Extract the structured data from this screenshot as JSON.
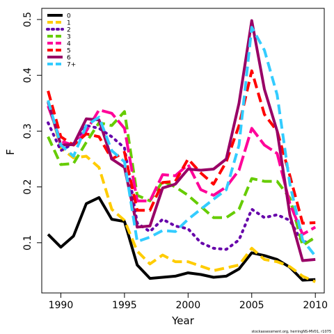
{
  "chart_data": {
    "type": "line",
    "xlabel": "Year",
    "ylabel": "F",
    "xlim": [
      1988.5,
      2010.7
    ],
    "ylim": [
      0.01,
      0.52
    ],
    "xticks": [
      1990,
      1995,
      2000,
      2005,
      2010
    ],
    "yticks": [
      0.1,
      0.2,
      0.3,
      0.4,
      0.5
    ],
    "legend_position": "top-left",
    "footnote": "stockassessment.org, herringNS-MV01, r1075",
    "series": [
      {
        "name": "0",
        "color": "#000000",
        "dash": "solid",
        "x": [
          1989,
          1990,
          1991,
          1992,
          1993,
          1994,
          1995,
          1996,
          1997,
          1998,
          1999,
          2000,
          2001,
          2002,
          2003,
          2004,
          2005,
          2006,
          2007,
          2008,
          2009,
          2010
        ],
        "y": [
          0.115,
          0.092,
          0.112,
          0.17,
          0.181,
          0.142,
          0.138,
          0.06,
          0.036,
          0.038,
          0.04,
          0.046,
          0.043,
          0.038,
          0.04,
          0.053,
          0.082,
          0.077,
          0.07,
          0.056,
          0.033,
          0.034
        ]
      },
      {
        "name": "1",
        "color": "#ffcc00",
        "dash": "dashed",
        "x": [
          1989,
          1990,
          1991,
          1992,
          1993,
          1994,
          1995,
          1996,
          1997,
          1998,
          1999,
          2000,
          2001,
          2002,
          2003,
          2004,
          2005,
          2006,
          2007,
          2008,
          2009,
          2010
        ],
        "y": [
          0.355,
          0.27,
          0.252,
          0.255,
          0.235,
          0.16,
          0.14,
          0.085,
          0.062,
          0.078,
          0.066,
          0.066,
          0.058,
          0.05,
          0.055,
          0.06,
          0.09,
          0.07,
          0.066,
          0.057,
          0.04,
          0.03
        ]
      },
      {
        "name": "2",
        "color": "#6600aa",
        "dash": "dotted",
        "x": [
          1989,
          1990,
          1991,
          1992,
          1993,
          1994,
          1995,
          1996,
          1997,
          1998,
          1999,
          2000,
          2001,
          2002,
          2003,
          2004,
          2005,
          2006,
          2007,
          2008,
          2009,
          2010
        ],
        "y": [
          0.315,
          0.265,
          0.278,
          0.31,
          0.305,
          0.29,
          0.27,
          0.135,
          0.12,
          0.142,
          0.13,
          0.125,
          0.1,
          0.09,
          0.088,
          0.105,
          0.16,
          0.145,
          0.15,
          0.14,
          0.1,
          0.107
        ]
      },
      {
        "name": "3",
        "color": "#66cc00",
        "dash": "dashed",
        "x": [
          1989,
          1990,
          1991,
          1992,
          1993,
          1994,
          1995,
          1996,
          1997,
          1998,
          1999,
          2000,
          2001,
          2002,
          2003,
          2004,
          2005,
          2006,
          2007,
          2008,
          2009,
          2010
        ],
        "y": [
          0.29,
          0.24,
          0.242,
          0.28,
          0.315,
          0.31,
          0.335,
          0.185,
          0.175,
          0.21,
          0.2,
          0.185,
          0.165,
          0.145,
          0.145,
          0.16,
          0.215,
          0.21,
          0.21,
          0.18,
          0.095,
          0.11
        ]
      },
      {
        "name": "4",
        "color": "#ff0099",
        "dash": "longdash",
        "x": [
          1989,
          1990,
          1991,
          1992,
          1993,
          1994,
          1995,
          1996,
          1997,
          1998,
          1999,
          2000,
          2001,
          2002,
          2003,
          2004,
          2005,
          2006,
          2007,
          2008,
          2009,
          2010
        ],
        "y": [
          0.345,
          0.282,
          0.275,
          0.3,
          0.338,
          0.332,
          0.305,
          0.175,
          0.175,
          0.222,
          0.22,
          0.24,
          0.195,
          0.185,
          0.2,
          0.23,
          0.305,
          0.275,
          0.26,
          0.17,
          0.115,
          0.128
        ]
      },
      {
        "name": "5",
        "color": "#ff0000",
        "dash": "dashed",
        "x": [
          1989,
          1990,
          1991,
          1992,
          1993,
          1994,
          1995,
          1996,
          1997,
          1998,
          1999,
          2000,
          2001,
          2002,
          2003,
          2004,
          2005,
          2006,
          2007,
          2008,
          2009,
          2010
        ],
        "y": [
          0.372,
          0.29,
          0.275,
          0.295,
          0.29,
          0.25,
          0.262,
          0.158,
          0.158,
          0.208,
          0.21,
          0.25,
          0.225,
          0.205,
          0.245,
          0.31,
          0.408,
          0.33,
          0.3,
          0.22,
          0.135,
          0.136
        ]
      },
      {
        "name": "6",
        "color": "#990066",
        "dash": "solid",
        "x": [
          1989,
          1990,
          1991,
          1992,
          1993,
          1994,
          1995,
          1996,
          1997,
          1998,
          1999,
          2000,
          2001,
          2002,
          2003,
          2004,
          2005,
          2006,
          2007,
          2008,
          2009,
          2010
        ],
        "y": [
          0.352,
          0.275,
          0.276,
          0.322,
          0.32,
          0.25,
          0.235,
          0.128,
          0.13,
          0.198,
          0.205,
          0.232,
          0.23,
          0.232,
          0.25,
          0.35,
          0.498,
          0.375,
          0.3,
          0.15,
          0.068,
          0.07
        ]
      },
      {
        "name": "7+",
        "color": "#33ccff",
        "dash": "dashed",
        "x": [
          1989,
          1990,
          1991,
          1992,
          1993,
          1994,
          1995,
          1996,
          1997,
          1998,
          1999,
          2000,
          2001,
          2002,
          2003,
          2004,
          2005,
          2006,
          2007,
          2008,
          2009,
          2010
        ],
        "y": [
          0.355,
          0.275,
          0.255,
          0.31,
          0.325,
          0.265,
          0.245,
          0.102,
          0.11,
          0.122,
          0.12,
          0.142,
          0.16,
          0.178,
          0.195,
          0.275,
          0.486,
          0.445,
          0.365,
          0.205,
          0.105,
          0.076
        ]
      }
    ]
  }
}
